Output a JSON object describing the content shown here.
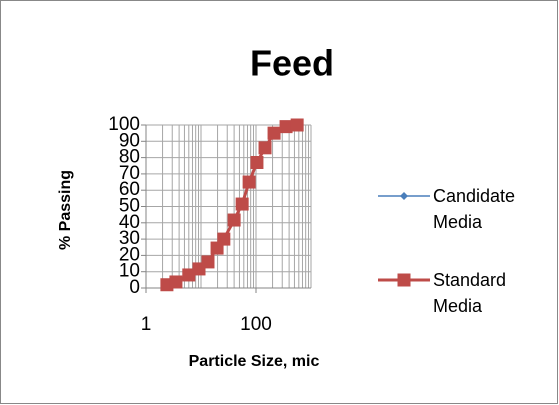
{
  "chart_data": {
    "type": "line",
    "title": "Feed",
    "x_label": "Particle Size, mic",
    "y_label": "% Passing",
    "x_scale": "log",
    "xlim": [
      1,
      1000
    ],
    "xticks": [
      1,
      100
    ],
    "ylim": [
      0,
      100
    ],
    "yticks": [
      0,
      10,
      20,
      30,
      40,
      50,
      60,
      70,
      80,
      90,
      100
    ],
    "grid": true,
    "minor_grid": true,
    "legend": "right",
    "series": [
      {
        "name": "Candidate Media",
        "color": "#4a7ebb",
        "marker": "diamond",
        "x": [
          2.4,
          3.5,
          6,
          9.2,
          13.4,
          19.6,
          26,
          40,
          56,
          75,
          104,
          146,
          213,
          352,
          560
        ],
        "values": [
          2,
          3.7,
          8,
          11.7,
          16,
          24.5,
          30,
          41.7,
          53,
          65,
          77,
          86,
          95,
          99,
          100
        ]
      },
      {
        "name": "Standard Media",
        "color": "#be4b48",
        "marker": "square",
        "x": [
          2.4,
          3.5,
          6,
          9.2,
          13.4,
          19.6,
          26,
          40,
          56,
          75,
          104,
          146,
          213,
          352,
          560
        ],
        "values": [
          2,
          3.7,
          8,
          11.7,
          16,
          24.5,
          30,
          41.7,
          51.5,
          65,
          77,
          86,
          95,
          99,
          100
        ]
      }
    ]
  }
}
